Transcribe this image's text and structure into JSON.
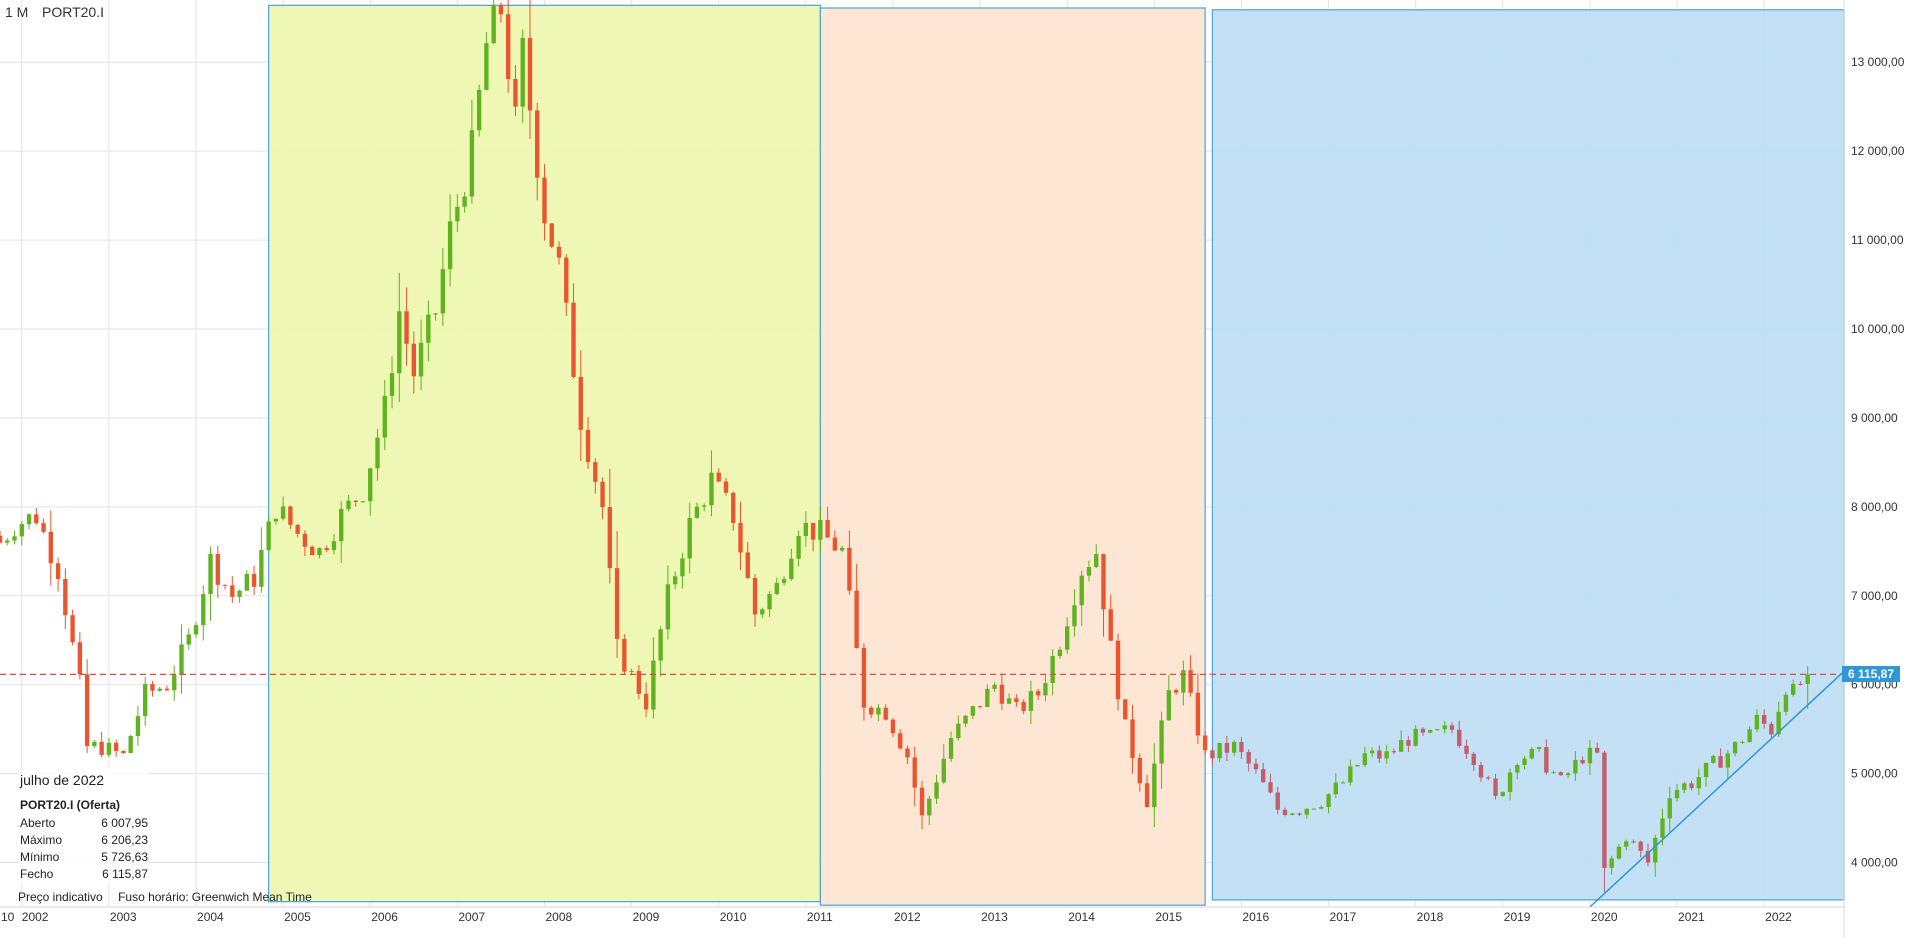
{
  "header": {
    "timeframe": "1 M",
    "symbol": "PORT20.I"
  },
  "ohlc_panel": {
    "date": "julho de 2022",
    "instrument": "PORT20.I (Oferta)",
    "rows": [
      {
        "label": "Aberto",
        "value": "6 007,95"
      },
      {
        "label": "Máximo",
        "value": "6 206,23"
      },
      {
        "label": "Mínimo",
        "value": "5 726,63"
      },
      {
        "label": "Fecho",
        "value": "6 115,87"
      }
    ]
  },
  "footer": {
    "indicative": "Preço indicativo",
    "timezone_label": "Fuso horário:",
    "timezone": "Greenwich Mean Time"
  },
  "current_price_label": "6 115,87",
  "colors": {
    "up": "#5fb31e",
    "down": "#e8552e",
    "down_late": "#c25d6a",
    "zone_green": "#eef7b0",
    "zone_orange": "#fde5d2",
    "zone_blue": "#c0def3",
    "zone_border": "#55a9dc",
    "price_line": "#e24b4b",
    "trendline": "#2f96d8",
    "grid": "#e3e3e3"
  },
  "chart_data": {
    "type": "candlestick",
    "instrument": "PORT20.I",
    "timeframe": "1 M",
    "ylim": [
      3500,
      13700
    ],
    "y_ticks": [
      4000,
      5000,
      6000,
      7000,
      8000,
      9000,
      10000,
      11000,
      12000,
      13000
    ],
    "y_tick_labels": [
      "4 000,00",
      "5 000,00",
      "6 000,00",
      "7 000,00",
      "8 000,00",
      "9 000,00",
      "10 000,00",
      "11 000,00",
      "12 000,00",
      "13 000,00"
    ],
    "x_range": [
      "2001-10",
      "2022-12"
    ],
    "x_ticks": [
      "2002",
      "2003",
      "2004",
      "2005",
      "2006",
      "2007",
      "2008",
      "2009",
      "2010",
      "2011",
      "2012",
      "2013",
      "2014",
      "2015",
      "2016",
      "2017",
      "2018",
      "2019",
      "2020",
      "2021",
      "2022"
    ],
    "x_first_label": "10",
    "current_price": 6115.87,
    "zones": [
      {
        "start": "2004-11",
        "end": "2011-03",
        "top": 13640,
        "bottom": 3560,
        "color": "green"
      },
      {
        "start": "2011-03",
        "end": "2015-08",
        "top": 13610,
        "bottom": 3520,
        "color": "orange"
      },
      {
        "start": "2015-09",
        "end": "2022-12",
        "top": 13590,
        "bottom": 3580,
        "color": "blue"
      }
    ],
    "trendline": {
      "from": {
        "date": "2020-01",
        "value": 3500
      },
      "to": {
        "date": "2022-12",
        "value": 6150
      }
    },
    "close_anchors": [
      [
        "2001-10",
        7600
      ],
      [
        "2001-12",
        7800
      ],
      [
        "2002-03",
        7900
      ],
      [
        "2002-06",
        7300
      ],
      [
        "2002-09",
        6000
      ],
      [
        "2002-10",
        5300
      ],
      [
        "2002-12",
        5300
      ],
      [
        "2003-03",
        5200
      ],
      [
        "2003-06",
        5900
      ],
      [
        "2003-09",
        6000
      ],
      [
        "2003-12",
        6500
      ],
      [
        "2004-03",
        7400
      ],
      [
        "2004-06",
        7000
      ],
      [
        "2004-09",
        7200
      ],
      [
        "2004-12",
        8000
      ],
      [
        "2005-03",
        7700
      ],
      [
        "2005-06",
        7500
      ],
      [
        "2005-09",
        7900
      ],
      [
        "2005-12",
        8200
      ],
      [
        "2006-03",
        9100
      ],
      [
        "2006-05",
        10200
      ],
      [
        "2006-07",
        9500
      ],
      [
        "2006-10",
        10200
      ],
      [
        "2006-12",
        11100
      ],
      [
        "2007-03",
        12000
      ],
      [
        "2007-05",
        13200
      ],
      [
        "2007-07",
        13600
      ],
      [
        "2007-09",
        12300
      ],
      [
        "2007-10",
        13100
      ],
      [
        "2008-01",
        11300
      ],
      [
        "2008-03",
        10700
      ],
      [
        "2008-06",
        9000
      ],
      [
        "2008-09",
        8000
      ],
      [
        "2008-11",
        6400
      ],
      [
        "2009-03",
        5800
      ],
      [
        "2009-06",
        7000
      ],
      [
        "2009-09",
        7800
      ],
      [
        "2009-12",
        8300
      ],
      [
        "2010-03",
        7900
      ],
      [
        "2010-06",
        6800
      ],
      [
        "2010-09",
        7100
      ],
      [
        "2010-12",
        7800
      ],
      [
        "2011-03",
        7700
      ],
      [
        "2011-06",
        7500
      ],
      [
        "2011-09",
        5800
      ],
      [
        "2011-12",
        5700
      ],
      [
        "2012-03",
        5200
      ],
      [
        "2012-05",
        4500
      ],
      [
        "2012-09",
        5400
      ],
      [
        "2012-12",
        5700
      ],
      [
        "2013-03",
        6000
      ],
      [
        "2013-06",
        5700
      ],
      [
        "2013-09",
        5900
      ],
      [
        "2013-12",
        6500
      ],
      [
        "2014-03",
        7300
      ],
      [
        "2014-05",
        7500
      ],
      [
        "2014-07",
        6400
      ],
      [
        "2014-09",
        5500
      ],
      [
        "2014-12",
        4700
      ],
      [
        "2015-03",
        5900
      ],
      [
        "2015-05",
        6100
      ],
      [
        "2015-08",
        5200
      ],
      [
        "2015-12",
        5300
      ],
      [
        "2016-03",
        5000
      ],
      [
        "2016-06",
        4600
      ],
      [
        "2016-09",
        4600
      ],
      [
        "2016-12",
        4700
      ],
      [
        "2017-03",
        4900
      ],
      [
        "2017-06",
        5200
      ],
      [
        "2017-09",
        5200
      ],
      [
        "2017-12",
        5400
      ],
      [
        "2018-03",
        5400
      ],
      [
        "2018-06",
        5500
      ],
      [
        "2018-09",
        5200
      ],
      [
        "2018-12",
        4700
      ],
      [
        "2019-03",
        5200
      ],
      [
        "2019-06",
        5200
      ],
      [
        "2019-09",
        4900
      ],
      [
        "2019-12",
        5200
      ],
      [
        "2020-02",
        5200
      ],
      [
        "2020-03",
        3900
      ],
      [
        "2020-06",
        4300
      ],
      [
        "2020-09",
        4000
      ],
      [
        "2020-12",
        4800
      ],
      [
        "2021-03",
        4900
      ],
      [
        "2021-06",
        5100
      ],
      [
        "2021-09",
        5300
      ],
      [
        "2021-12",
        5600
      ],
      [
        "2022-02",
        5500
      ],
      [
        "2022-04",
        6000
      ],
      [
        "2022-05",
        5900
      ],
      [
        "2022-07",
        6115.87
      ]
    ],
    "last_candle": {
      "date": "2022-07",
      "open": 6007.95,
      "high": 6206.23,
      "low": 5726.63,
      "close": 6115.87
    }
  }
}
